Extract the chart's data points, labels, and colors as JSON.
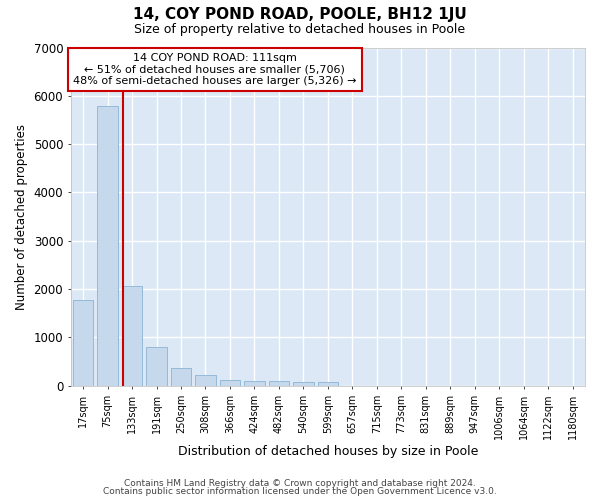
{
  "title": "14, COY POND ROAD, POOLE, BH12 1JU",
  "subtitle": "Size of property relative to detached houses in Poole",
  "xlabel": "Distribution of detached houses by size in Poole",
  "ylabel": "Number of detached properties",
  "bar_color": "#c5d8ec",
  "bar_edge_color": "#8ab4d4",
  "background_color": "#dce8f5",
  "grid_color": "#ffffff",
  "categories": [
    "17sqm",
    "75sqm",
    "133sqm",
    "191sqm",
    "250sqm",
    "308sqm",
    "366sqm",
    "424sqm",
    "482sqm",
    "540sqm",
    "599sqm",
    "657sqm",
    "715sqm",
    "773sqm",
    "831sqm",
    "889sqm",
    "947sqm",
    "1006sqm",
    "1064sqm",
    "1122sqm",
    "1180sqm"
  ],
  "values": [
    1780,
    5780,
    2070,
    800,
    360,
    230,
    130,
    105,
    95,
    85,
    70,
    0,
    0,
    0,
    0,
    0,
    0,
    0,
    0,
    0,
    0
  ],
  "ylim": [
    0,
    7000
  ],
  "yticks": [
    0,
    1000,
    2000,
    3000,
    4000,
    5000,
    6000,
    7000
  ],
  "annotation_line1": "14 COY POND ROAD: 111sqm",
  "annotation_line2": "← 51% of detached houses are smaller (5,706)",
  "annotation_line3": "48% of semi-detached houses are larger (5,326) →",
  "annotation_box_color": "#cc0000",
  "prop_sqm": 111,
  "bin_edges": [
    17,
    75,
    133,
    191,
    250,
    308,
    366,
    424,
    482,
    540,
    599,
    657,
    715,
    773,
    831,
    889,
    947,
    1006,
    1064,
    1122,
    1180
  ],
  "footer_line1": "Contains HM Land Registry data © Crown copyright and database right 2024.",
  "footer_line2": "Contains public sector information licensed under the Open Government Licence v3.0."
}
